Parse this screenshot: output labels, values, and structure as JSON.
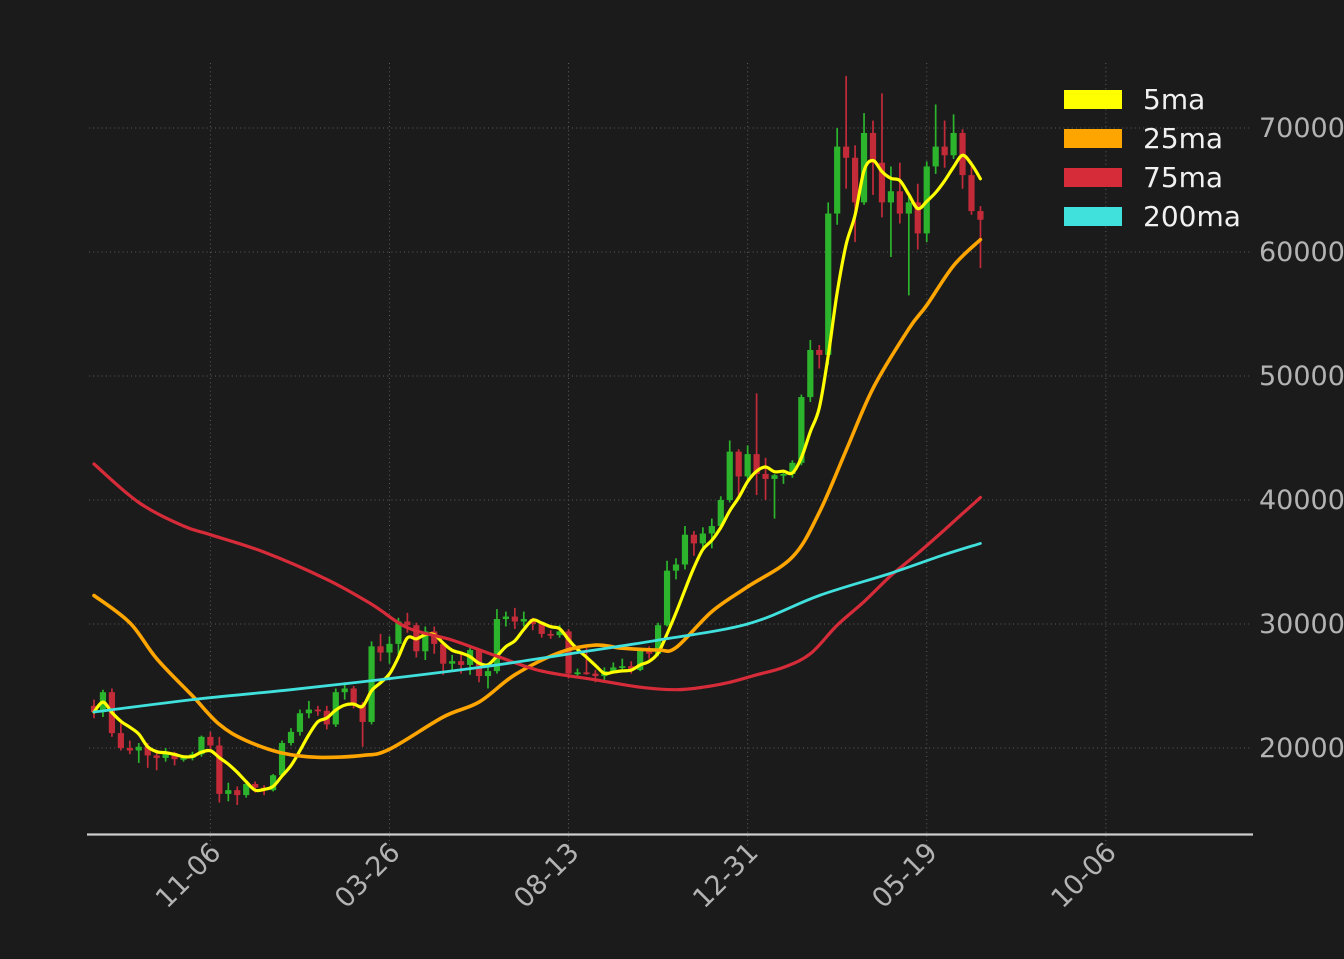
{
  "chart_data": {
    "type": "candlestick",
    "title": "",
    "grid": {
      "style": "dotted",
      "color": "#616161"
    },
    "x_axis": {
      "tick_labels": [
        "11-06",
        "03-26",
        "08-13",
        "12-31",
        "05-19",
        "10-06"
      ],
      "tick_weeks": [
        14,
        34,
        54,
        74,
        94,
        114
      ],
      "label_rotation_deg": -45
    },
    "y_axis": {
      "side": "right",
      "tick_labels": [
        "70000",
        "60000",
        "50000",
        "40000",
        "30000",
        "20000"
      ],
      "tick_values": [
        70000,
        60000,
        50000,
        40000,
        30000,
        20000
      ],
      "range": [
        15000,
        76000
      ]
    },
    "legend": {
      "position": "top-right",
      "items": [
        {
          "label": "5ma",
          "color": "#ffff00"
        },
        {
          "label": "25ma",
          "color": "#ffa500"
        },
        {
          "label": "75ma",
          "color": "#d62b38"
        },
        {
          "label": "200ma",
          "color": "#40e0dd"
        }
      ]
    },
    "colors": {
      "background": "#1b1b1b",
      "candle_up": "#2cb52c",
      "candle_down": "#c32b39",
      "axis_line": "#cdcdcd",
      "tick_label": "#b3b3b3",
      "legend_text": "#f0f0f0"
    },
    "candles_ohlc": [
      [
        23400,
        23900,
        22400,
        22900
      ],
      [
        22900,
        24700,
        22500,
        24500
      ],
      [
        24500,
        24800,
        20900,
        21200
      ],
      [
        21200,
        22000,
        19800,
        20000
      ],
      [
        20000,
        20600,
        19500,
        19800
      ],
      [
        19800,
        20400,
        18800,
        20100
      ],
      [
        20100,
        20400,
        18400,
        19400
      ],
      [
        19400,
        19800,
        18200,
        19200
      ],
      [
        19200,
        20000,
        18900,
        19600
      ],
      [
        19600,
        19700,
        18600,
        19100
      ],
      [
        19100,
        19400,
        18900,
        19200
      ],
      [
        19200,
        19700,
        19000,
        19500
      ],
      [
        19500,
        21000,
        19300,
        20900
      ],
      [
        20900,
        21300,
        19900,
        20200
      ],
      [
        20200,
        20900,
        15600,
        16300
      ],
      [
        16300,
        17200,
        15700,
        16600
      ],
      [
        16600,
        16900,
        15400,
        16200
      ],
      [
        16200,
        17400,
        16000,
        17100
      ],
      [
        17100,
        17300,
        16400,
        16800
      ],
      [
        16800,
        17000,
        16200,
        16600
      ],
      [
        16600,
        17900,
        16500,
        17800
      ],
      [
        17800,
        20600,
        17700,
        20400
      ],
      [
        20400,
        21600,
        20200,
        21300
      ],
      [
        21300,
        23100,
        21000,
        22800
      ],
      [
        22800,
        23800,
        22400,
        23100
      ],
      [
        23100,
        23400,
        22600,
        23000
      ],
      [
        23000,
        23400,
        21500,
        21900
      ],
      [
        21900,
        24800,
        21700,
        24500
      ],
      [
        24500,
        25300,
        23900,
        24800
      ],
      [
        24800,
        25000,
        23200,
        23500
      ],
      [
        23500,
        23700,
        20100,
        22100
      ],
      [
        22100,
        28600,
        21900,
        28200
      ],
      [
        28200,
        29200,
        27000,
        27700
      ],
      [
        27700,
        29000,
        26800,
        28400
      ],
      [
        28400,
        30500,
        27500,
        30200
      ],
      [
        30200,
        30900,
        29300,
        29900
      ],
      [
        29900,
        30100,
        27300,
        27800
      ],
      [
        27800,
        29800,
        27100,
        29400
      ],
      [
        29400,
        29800,
        27600,
        28400
      ],
      [
        28400,
        28600,
        25900,
        26800
      ],
      [
        26800,
        27500,
        26200,
        27000
      ],
      [
        27000,
        27600,
        26000,
        26700
      ],
      [
        26700,
        28300,
        25900,
        27900
      ],
      [
        27900,
        28000,
        25300,
        25800
      ],
      [
        25800,
        26700,
        24800,
        26200
      ],
      [
        26200,
        31200,
        26000,
        30400
      ],
      [
        30400,
        31000,
        29800,
        30600
      ],
      [
        30600,
        31300,
        29600,
        30200
      ],
      [
        30200,
        31000,
        29800,
        30400
      ],
      [
        30400,
        30500,
        29500,
        30000
      ],
      [
        30000,
        30100,
        28900,
        29200
      ],
      [
        29200,
        29500,
        28800,
        29100
      ],
      [
        29100,
        29900,
        28900,
        29400
      ],
      [
        29400,
        29600,
        25600,
        26000
      ],
      [
        26000,
        26400,
        25600,
        26100
      ],
      [
        26100,
        28100,
        25900,
        26000
      ],
      [
        26000,
        26300,
        25300,
        25800
      ],
      [
        25800,
        26500,
        25500,
        26200
      ],
      [
        26200,
        26900,
        26000,
        26500
      ],
      [
        26500,
        27200,
        26300,
        26600
      ],
      [
        26600,
        27000,
        26000,
        26300
      ],
      [
        26300,
        28100,
        26200,
        27900
      ],
      [
        27900,
        28200,
        27200,
        27600
      ],
      [
        27600,
        30100,
        27400,
        29900
      ],
      [
        29900,
        35100,
        29800,
        34300
      ],
      [
        34300,
        35300,
        33600,
        34800
      ],
      [
        34800,
        37900,
        34400,
        37200
      ],
      [
        37200,
        37500,
        35500,
        36500
      ],
      [
        36500,
        37800,
        35900,
        37300
      ],
      [
        37300,
        38500,
        36100,
        37900
      ],
      [
        37900,
        40300,
        37600,
        40000
      ],
      [
        40000,
        44800,
        39800,
        43900
      ],
      [
        43900,
        44100,
        40100,
        41900
      ],
      [
        41900,
        44400,
        41400,
        43700
      ],
      [
        43700,
        48600,
        40400,
        42100
      ],
      [
        42100,
        43400,
        40000,
        41700
      ],
      [
        41700,
        42100,
        38500,
        42000
      ],
      [
        42000,
        42400,
        41300,
        42100
      ],
      [
        42100,
        43200,
        41800,
        43000
      ],
      [
        43000,
        48500,
        42800,
        48300
      ],
      [
        48300,
        52900,
        47900,
        52100
      ],
      [
        52100,
        52500,
        50600,
        51700
      ],
      [
        51700,
        64000,
        50900,
        63100
      ],
      [
        63100,
        70000,
        62200,
        68500
      ],
      [
        68500,
        74200,
        65100,
        67600
      ],
      [
        67600,
        68600,
        60800,
        64000
      ],
      [
        64000,
        71200,
        63800,
        69600
      ],
      [
        69600,
        70600,
        64600,
        67200
      ],
      [
        67200,
        72800,
        62800,
        64000
      ],
      [
        64000,
        66900,
        59600,
        64900
      ],
      [
        64900,
        67200,
        62300,
        63100
      ],
      [
        63100,
        64800,
        56500,
        64000
      ],
      [
        64000,
        65500,
        60200,
        61500
      ],
      [
        61500,
        67300,
        60800,
        66900
      ],
      [
        66900,
        71900,
        66300,
        68500
      ],
      [
        68500,
        70600,
        66800,
        67800
      ],
      [
        67800,
        71100,
        67500,
        69600
      ],
      [
        69600,
        69900,
        65100,
        66200
      ],
      [
        66200,
        67300,
        63000,
        63300
      ],
      [
        63300,
        63700,
        58700,
        62600
      ]
    ],
    "ma_overlays": [
      {
        "name": "5ma",
        "color": "#ffff00",
        "window": 5,
        "computed_from": "close",
        "points_week_value": []
      },
      {
        "name": "25ma",
        "color": "#ffa500",
        "points_week_value": [
          [
            1,
            32300
          ],
          [
            5,
            30100
          ],
          [
            8,
            27200
          ],
          [
            12,
            24200
          ],
          [
            15,
            21900
          ],
          [
            18,
            20600
          ],
          [
            22,
            19600
          ],
          [
            26,
            19250
          ],
          [
            31,
            19400
          ],
          [
            34,
            19900
          ],
          [
            40,
            22500
          ],
          [
            44,
            23700
          ],
          [
            48,
            25900
          ],
          [
            53,
            27700
          ],
          [
            57,
            28300
          ],
          [
            60,
            28050
          ],
          [
            64,
            27900
          ],
          [
            66,
            28100
          ],
          [
            70,
            31000
          ],
          [
            74,
            33000
          ],
          [
            79,
            35400
          ],
          [
            82,
            39000
          ],
          [
            85,
            44000
          ],
          [
            88,
            49000
          ],
          [
            92,
            53800
          ],
          [
            94,
            55700
          ],
          [
            97,
            58900
          ],
          [
            100,
            61000
          ]
        ]
      },
      {
        "name": "75ma",
        "color": "#d62b38",
        "points_week_value": [
          [
            1,
            42900
          ],
          [
            6,
            39800
          ],
          [
            11,
            37900
          ],
          [
            14,
            37200
          ],
          [
            20,
            35800
          ],
          [
            27,
            33600
          ],
          [
            32,
            31600
          ],
          [
            36,
            29700
          ],
          [
            41,
            28700
          ],
          [
            46,
            27400
          ],
          [
            51,
            26200
          ],
          [
            57,
            25500
          ],
          [
            62,
            24900
          ],
          [
            66,
            24700
          ],
          [
            69,
            24900
          ],
          [
            72,
            25300
          ],
          [
            75,
            25900
          ],
          [
            78,
            26500
          ],
          [
            81,
            27600
          ],
          [
            84,
            29900
          ],
          [
            87,
            31800
          ],
          [
            90,
            33900
          ],
          [
            93,
            35700
          ],
          [
            96,
            37600
          ],
          [
            98,
            38900
          ],
          [
            100,
            40200
          ]
        ]
      },
      {
        "name": "200ma",
        "color": "#40e0dd",
        "points_week_value": [
          [
            1,
            22900
          ],
          [
            12,
            23900
          ],
          [
            23,
            24700
          ],
          [
            34,
            25600
          ],
          [
            45,
            26600
          ],
          [
            56,
            27800
          ],
          [
            64,
            28700
          ],
          [
            74,
            30000
          ],
          [
            82,
            32300
          ],
          [
            90,
            34100
          ],
          [
            96,
            35600
          ],
          [
            100,
            36500
          ]
        ]
      }
    ]
  }
}
